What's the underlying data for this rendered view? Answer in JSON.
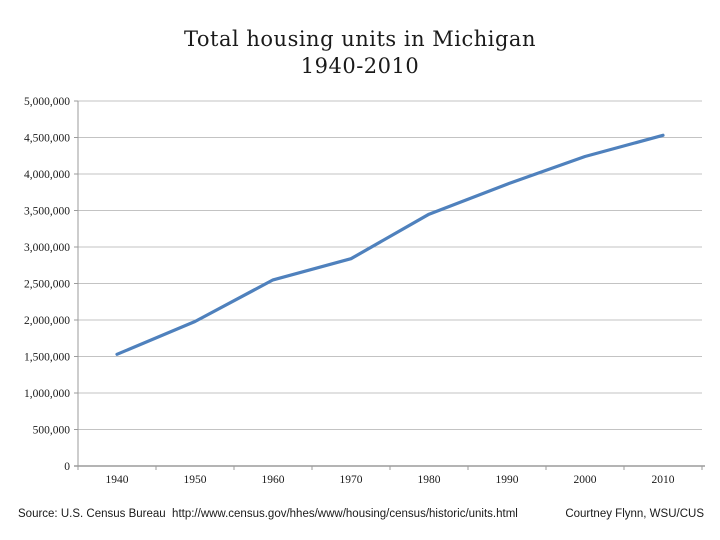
{
  "title": {
    "line1": "Total housing units in Michigan",
    "line2": "1940-2010"
  },
  "footer": {
    "source": "Source: U.S. Census Bureau  http://www.census.gov/hhes/www/housing/census/historic/units.html",
    "credit": "Courtney Flynn, WSU/CUS"
  },
  "colors": {
    "line": "#4F81BD",
    "gridline": "#C3C3C3",
    "axis": "#9B9B9B",
    "label_text": "#1a1a1a"
  },
  "chart_data": {
    "type": "line",
    "title": "Total housing units in Michigan 1940-2010",
    "categories": [
      "1940",
      "1950",
      "1960",
      "1970",
      "1980",
      "1990",
      "2000",
      "2010"
    ],
    "values": [
      1530000,
      1980000,
      2550000,
      2840000,
      3450000,
      3860000,
      4240000,
      4530000
    ],
    "xlabel": "",
    "ylabel": "",
    "ylim": [
      0,
      5000000
    ],
    "ytick_step": 500000,
    "ytick_labels": [
      "0",
      "500,000",
      "1,000,000",
      "1,500,000",
      "2,000,000",
      "2,500,000",
      "3,000,000",
      "3,500,000",
      "4,000,000",
      "4,500,000",
      "5,000,000"
    ],
    "grid": true,
    "legend": false,
    "marker": "none"
  }
}
